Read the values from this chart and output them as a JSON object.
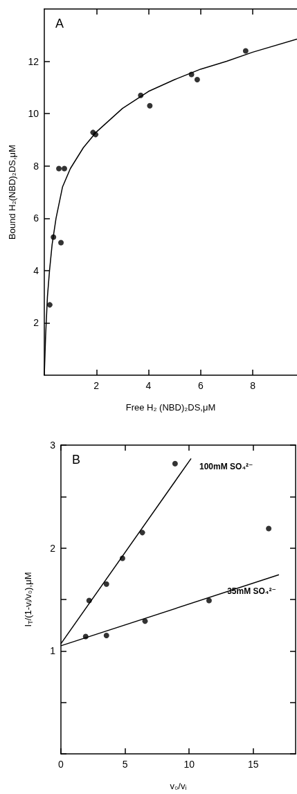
{
  "chart_data": [
    {
      "type": "scatter",
      "xlabel": "Free H₂ (NBD)₂DS,μM",
      "ylabel": "Bound H₂(NBD)₂DS,μM",
      "annotations": [
        "A"
      ],
      "xlim": [
        0,
        9.7
      ],
      "xticks": [
        2,
        4,
        6,
        8
      ],
      "ylim": [
        0,
        14
      ],
      "yticks": [
        2,
        4,
        6,
        8,
        10,
        12
      ],
      "marker": "circle",
      "x": [
        0.21,
        0.35,
        0.64,
        0.56,
        0.77,
        1.87,
        1.97,
        3.7,
        4.05,
        5.65,
        5.87,
        7.73
      ],
      "series": [
        {
          "color": "#000000",
          "values": [
            2.69,
            5.28,
            5.07,
            7.9,
            7.9,
            9.28,
            9.2,
            10.7,
            10.3,
            11.5,
            11.3,
            12.4
          ]
        },
        {
          "type": "line",
          "color": "#000000",
          "marker": "none",
          "x": [
            0,
            0.05,
            0.12,
            0.2,
            0.3,
            0.45,
            0.7,
            1,
            1.5,
            2,
            3,
            4,
            5,
            6,
            7,
            8,
            9.7
          ],
          "values": [
            0,
            1.5,
            3,
            4,
            5,
            6,
            7.2,
            7.9,
            8.7,
            9.3,
            10.2,
            10.85,
            11.3,
            11.7,
            12,
            12.35,
            12.85
          ]
        }
      ]
    },
    {
      "type": "scatter",
      "xlabel": "v₀/vᵢ",
      "ylabel": "I$_{T}$/(1-vᵢ/v₀),μM",
      "annotations": [
        "B"
      ],
      "xlim": [
        0,
        18.3
      ],
      "xticks": [
        0,
        5,
        10,
        15
      ],
      "ylim": [
        0,
        3
      ],
      "yticks": [
        {
          "value": 0,
          "label": null
        },
        {
          "value": 0.5,
          "label": null
        },
        1,
        {
          "value": 1.5,
          "label": null
        },
        2,
        {
          "value": 2.5,
          "label": null
        },
        3
      ],
      "marker": "circle",
      "series": [
        {
          "color": "#000000",
          "x": [
            2.2,
            3.55,
            4.8,
            6.35,
            8.9
          ],
          "values": [
            1.49,
            1.65,
            1.9,
            2.15,
            2.82
          ]
        },
        {
          "type": "line",
          "name": "100mM SO₄²⁻",
          "color": "#000000",
          "marker": "none",
          "x": [
            0,
            10.15
          ],
          "values": [
            1.07,
            2.87
          ]
        },
        {
          "color": "#000000",
          "x": [
            1.93,
            3.55,
            6.56,
            11.55,
            16.2
          ],
          "values": [
            1.14,
            1.15,
            1.29,
            1.49,
            2.19
          ]
        },
        {
          "type": "line",
          "name": "35mM SO₄²⁻",
          "color": "#000000",
          "marker": "none",
          "x": [
            0,
            17
          ],
          "values": [
            1.05,
            1.74
          ]
        }
      ]
    }
  ]
}
